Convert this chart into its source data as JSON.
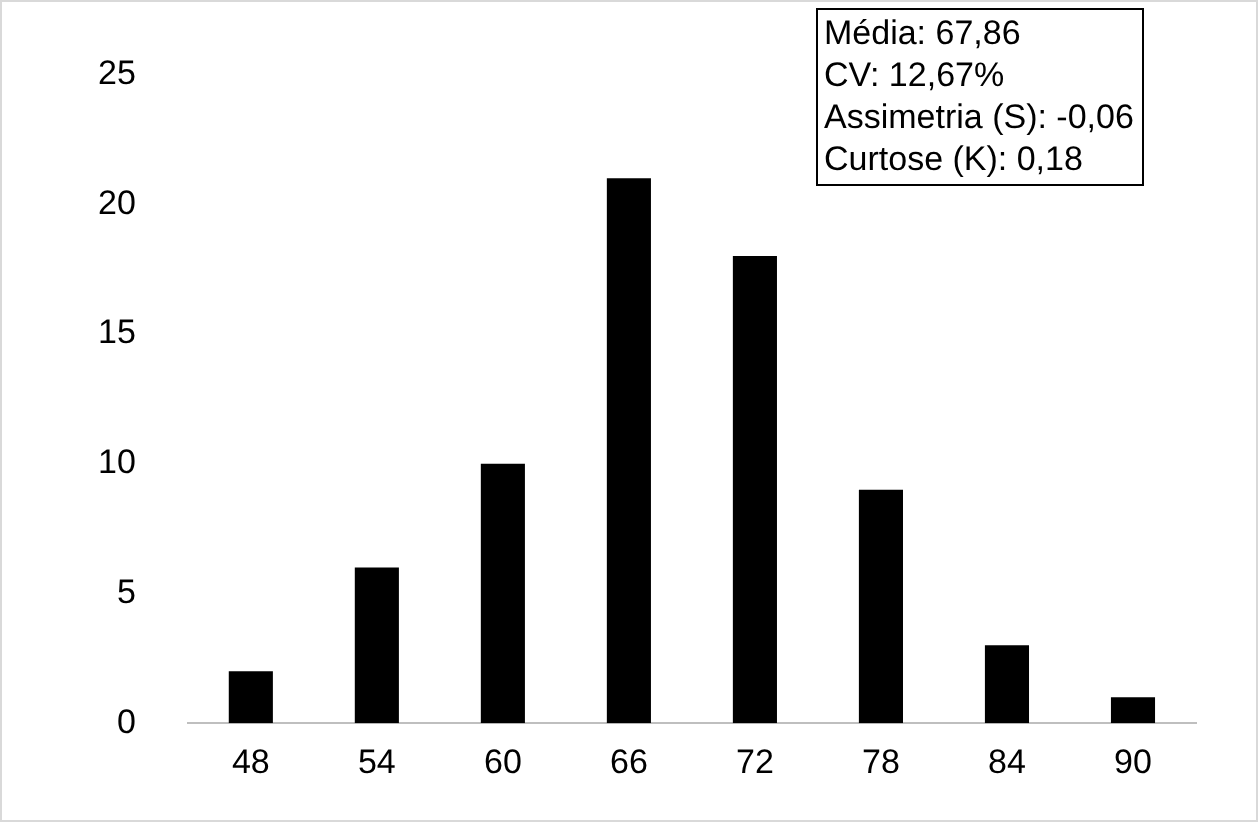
{
  "chart_data": {
    "type": "bar",
    "categories": [
      "48",
      "54",
      "60",
      "66",
      "72",
      "78",
      "84",
      "90"
    ],
    "values": [
      2,
      6,
      10,
      21,
      18,
      9,
      3,
      1
    ],
    "color": "#000000",
    "ylim": [
      0,
      25
    ],
    "yticks": [
      0,
      5,
      10,
      15,
      20,
      25
    ],
    "grid": false,
    "legend": false,
    "annotations": [
      "Média: 67,86",
      "CV: 12,67%",
      "Assimetria (S): -0,06",
      "Curtose (K): 0,18"
    ]
  }
}
